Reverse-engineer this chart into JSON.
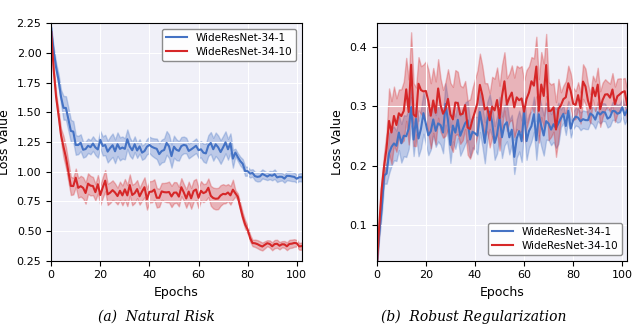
{
  "fig_width": 6.4,
  "fig_height": 3.34,
  "dpi": 100,
  "left_title": "(a)  Natural Risk",
  "right_title": "(b)  Robust Regularization",
  "xlabel": "Epochs",
  "ylabel": "Loss Value",
  "blue_color": "#4472c4",
  "red_color": "#d62728",
  "blue_alpha": 0.3,
  "red_alpha": 0.3,
  "legend_labels": [
    "WideResNet-34-1",
    "WideResNet-34-10"
  ],
  "left_ylim": [
    0.25,
    2.25
  ],
  "left_yticks": [
    0.25,
    0.5,
    0.75,
    1.0,
    1.25,
    1.5,
    1.75,
    2.0,
    2.25
  ],
  "right_ylim": [
    0.04,
    0.44
  ],
  "right_yticks": [
    0.1,
    0.2,
    0.3,
    0.4
  ],
  "xlim": [
    0,
    102
  ],
  "xticks": [
    0,
    20,
    40,
    60,
    80,
    100
  ],
  "seed": 42,
  "n_epochs": 103
}
